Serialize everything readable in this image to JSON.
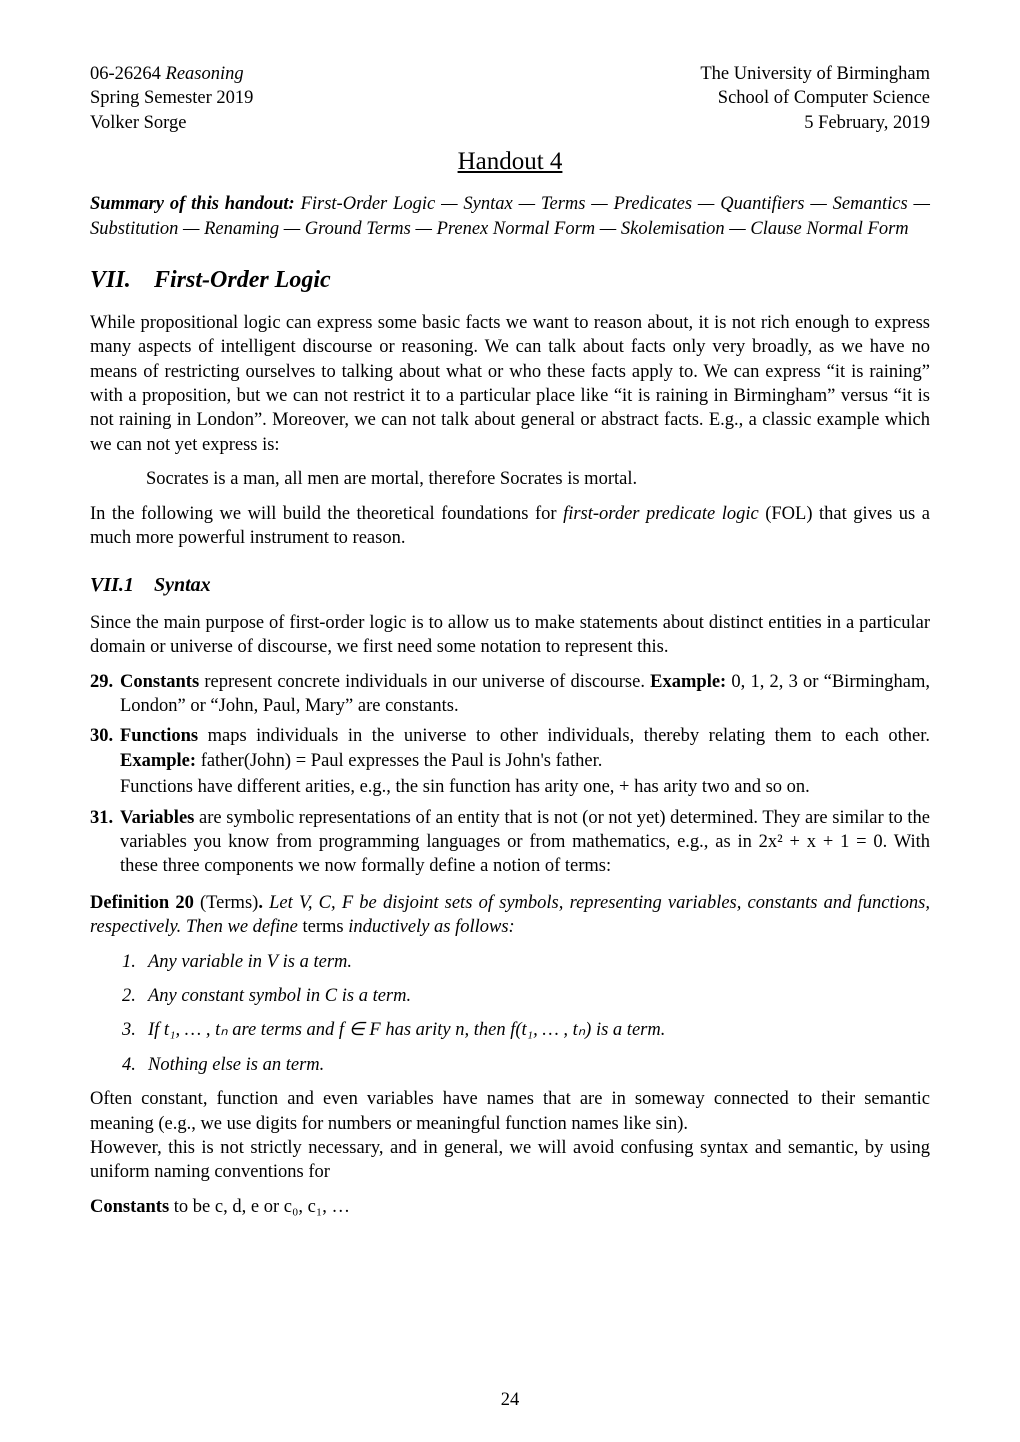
{
  "header": {
    "left": [
      "06-26264 Reasoning",
      "Spring Semester 2019",
      "Volker Sorge"
    ],
    "right": [
      "The University of Birmingham",
      "School of Computer Science",
      "5 February, 2019"
    ]
  },
  "handout_title": "Handout 4",
  "summary": {
    "lead": "Summary of this handout:",
    "text": " First-Order Logic — Syntax — Terms — Predicates — Quantifiers — Semantics — Substitution — Renaming — Ground Terms — Prenex Normal Form — Skolemisation — Clause Normal Form"
  },
  "section": {
    "num": "VII.",
    "title": "First-Order Logic"
  },
  "intro": {
    "p1": "While propositional logic can express some basic facts we want to reason about, it is not rich enough to express many aspects of intelligent discourse or reasoning. We can talk about facts only very broadly, as we have no means of restricting ourselves to talking about what or who these facts apply to. We can express “it is raining” with a proposition, but we can not restrict it to a particular place like “it is raining in Birmingham” versus “it is not raining in London”. Moreover, we can not talk about general or abstract facts. E.g., a classic example which we can not yet express is:",
    "quote": "Socrates is a man, all men are mortal, therefore Socrates is mortal.",
    "p2a": "In the following we will build the theoretical foundations for ",
    "p2b": "first-order predicate logic",
    "p2c": " (FOL) that gives us a much more powerful instrument to reason."
  },
  "subsection": {
    "num": "VII.1",
    "title": "Syntax"
  },
  "syntax_intro": "Since the main purpose of first-order logic is to allow us to make statements about distinct entities in a particular domain or universe of discourse, we first need some notation to represent this.",
  "items": {
    "i29": {
      "marker": "29.",
      "lead": "Constants",
      "body_a": " represent concrete individuals in our universe of discourse. ",
      "ex_lead": "Example:",
      "body_b": " 0, 1, 2, 3 or “Birmingham, London” or “John, Paul, Mary” are constants."
    },
    "i30": {
      "marker": "30.",
      "lead": "Functions",
      "body_a": " maps individuals in the universe to other individuals, thereby relating them to each other. ",
      "ex_lead": "Example:",
      "body_b": " father(John) = Paul expresses the Paul is John's father.",
      "sub": "Functions have different arities, e.g., the sin function has arity one, + has arity two and so on."
    },
    "i31": {
      "marker": "31.",
      "lead": "Variables",
      "body_a": " are symbolic representations of an entity that is not (or not yet) determined. They are similar to the variables you know from programming languages or from mathematics, e.g., as in 2x² + x + 1 = 0. With these three components we now formally define a notion of terms:"
    }
  },
  "definition": {
    "lead": "Definition 20 ",
    "paren": "(Terms)",
    "dot": ". ",
    "body_a": "Let ",
    "sets": "V, C, F",
    "body_b": " be disjoint sets of symbols, representing variables, constants and functions, respectively. Then we define ",
    "terms_word": "terms",
    "body_c": " inductively as follows:"
  },
  "enum": {
    "e1": {
      "n": "1.",
      "a": "Any variable in ",
      "set": "V",
      "b": " is a term."
    },
    "e2": {
      "n": "2.",
      "a": "Any constant symbol in ",
      "set": "C",
      "b": " is a term."
    },
    "e3": {
      "n": "3.",
      "a": "If t₁, … , tₙ are terms and f ∈ ",
      "set": "F",
      "b": " has arity n, then f(t₁, … , tₙ) is a term."
    },
    "e4": {
      "n": "4.",
      "a": "Nothing else is an term."
    }
  },
  "tail": {
    "p1": "Often constant, function and even variables have names that are in someway connected to their semantic meaning (e.g., we use digits for numbers or meaningful function names like sin).",
    "p2": "However, this is not strictly necessary, and in general, we will avoid confusing syntax and semantic, by using uniform naming conventions for",
    "const_lead": "Constants",
    "const_body": " to be c, d, e or c₀, c₁, …"
  },
  "page_number": "24"
}
